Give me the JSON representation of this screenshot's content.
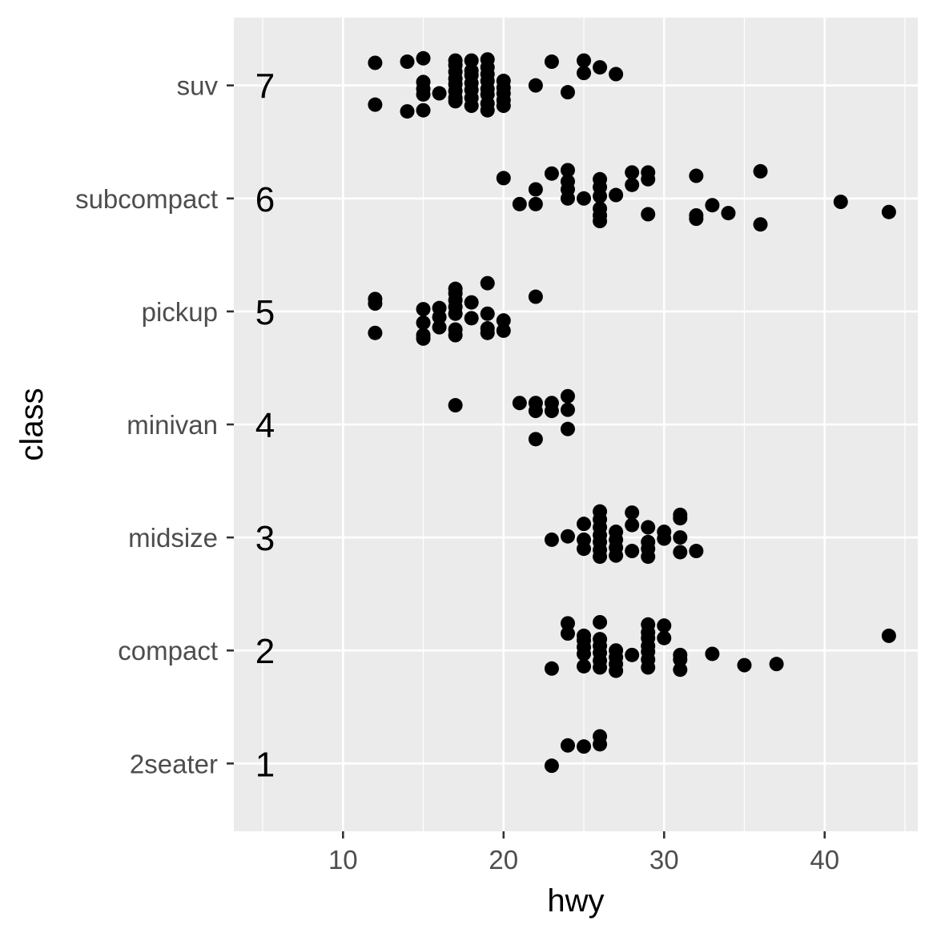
{
  "chart_data": {
    "type": "scatter",
    "xlabel": "hwy",
    "ylabel": "class",
    "xlim": [
      3.2,
      45.8
    ],
    "x_ticks": [
      10,
      20,
      30,
      40
    ],
    "categories": [
      "2seater",
      "compact",
      "midsize",
      "minivan",
      "pickup",
      "subcompact",
      "suv"
    ],
    "category_labels": [
      "1",
      "2",
      "3",
      "4",
      "5",
      "6",
      "7"
    ],
    "grid": true,
    "colors": {
      "panel": "#ebebeb",
      "grid": "#ffffff",
      "point": "#000000"
    },
    "points": [
      {
        "x": 23,
        "y": 0.98
      },
      {
        "x": 24,
        "y": 1.16
      },
      {
        "x": 25,
        "y": 1.15
      },
      {
        "x": 26,
        "y": 1.24
      },
      {
        "x": 26,
        "y": 1.17
      },
      {
        "x": 23,
        "y": 1.84
      },
      {
        "x": 24,
        "y": 2.24
      },
      {
        "x": 24,
        "y": 2.15
      },
      {
        "x": 25,
        "y": 2.09
      },
      {
        "x": 25,
        "y": 2.03
      },
      {
        "x": 25,
        "y": 1.97
      },
      {
        "x": 25,
        "y": 1.86
      },
      {
        "x": 25,
        "y": 2.13
      },
      {
        "x": 26,
        "y": 2.25
      },
      {
        "x": 26,
        "y": 2.1
      },
      {
        "x": 26,
        "y": 2.04
      },
      {
        "x": 26,
        "y": 1.98
      },
      {
        "x": 26,
        "y": 1.91
      },
      {
        "x": 26,
        "y": 1.85
      },
      {
        "x": 27,
        "y": 2.0
      },
      {
        "x": 27,
        "y": 1.94
      },
      {
        "x": 27,
        "y": 1.88
      },
      {
        "x": 27,
        "y": 1.82
      },
      {
        "x": 28,
        "y": 1.96
      },
      {
        "x": 29,
        "y": 2.23
      },
      {
        "x": 29,
        "y": 2.16
      },
      {
        "x": 29,
        "y": 2.11
      },
      {
        "x": 29,
        "y": 2.04
      },
      {
        "x": 29,
        "y": 1.99
      },
      {
        "x": 29,
        "y": 1.92
      },
      {
        "x": 29,
        "y": 1.85
      },
      {
        "x": 30,
        "y": 2.22
      },
      {
        "x": 30,
        "y": 2.11
      },
      {
        "x": 31,
        "y": 1.96
      },
      {
        "x": 31,
        "y": 1.92
      },
      {
        "x": 31,
        "y": 1.83
      },
      {
        "x": 33,
        "y": 1.97
      },
      {
        "x": 35,
        "y": 1.87
      },
      {
        "x": 37,
        "y": 1.88
      },
      {
        "x": 44,
        "y": 2.13
      },
      {
        "x": 23,
        "y": 2.98
      },
      {
        "x": 24,
        "y": 3.01
      },
      {
        "x": 25,
        "y": 3.12
      },
      {
        "x": 25,
        "y": 2.98
      },
      {
        "x": 25,
        "y": 2.9
      },
      {
        "x": 26,
        "y": 3.23
      },
      {
        "x": 26,
        "y": 3.16
      },
      {
        "x": 26,
        "y": 3.09
      },
      {
        "x": 26,
        "y": 3.02
      },
      {
        "x": 26,
        "y": 2.96
      },
      {
        "x": 26,
        "y": 2.89
      },
      {
        "x": 26,
        "y": 2.83
      },
      {
        "x": 27,
        "y": 3.05
      },
      {
        "x": 27,
        "y": 2.98
      },
      {
        "x": 27,
        "y": 2.91
      },
      {
        "x": 27,
        "y": 2.84
      },
      {
        "x": 28,
        "y": 3.22
      },
      {
        "x": 28,
        "y": 3.11
      },
      {
        "x": 28,
        "y": 2.88
      },
      {
        "x": 29,
        "y": 3.09
      },
      {
        "x": 29,
        "y": 2.96
      },
      {
        "x": 29,
        "y": 2.9
      },
      {
        "x": 29,
        "y": 2.83
      },
      {
        "x": 30,
        "y": 3.05
      },
      {
        "x": 30,
        "y": 2.99
      },
      {
        "x": 31,
        "y": 3.2
      },
      {
        "x": 31,
        "y": 3.17
      },
      {
        "x": 31,
        "y": 3.0
      },
      {
        "x": 31,
        "y": 2.87
      },
      {
        "x": 32,
        "y": 2.88
      },
      {
        "x": 17,
        "y": 4.17
      },
      {
        "x": 21,
        "y": 4.19
      },
      {
        "x": 22,
        "y": 4.19
      },
      {
        "x": 22,
        "y": 4.12
      },
      {
        "x": 22,
        "y": 3.87
      },
      {
        "x": 23,
        "y": 4.19
      },
      {
        "x": 23,
        "y": 4.12
      },
      {
        "x": 24,
        "y": 4.25
      },
      {
        "x": 24,
        "y": 4.13
      },
      {
        "x": 24,
        "y": 3.96
      },
      {
        "x": 12,
        "y": 5.11
      },
      {
        "x": 12,
        "y": 5.07
      },
      {
        "x": 12,
        "y": 4.81
      },
      {
        "x": 15,
        "y": 5.02
      },
      {
        "x": 15,
        "y": 4.9
      },
      {
        "x": 15,
        "y": 4.79
      },
      {
        "x": 15,
        "y": 4.76
      },
      {
        "x": 16,
        "y": 5.03
      },
      {
        "x": 16,
        "y": 4.95
      },
      {
        "x": 16,
        "y": 4.86
      },
      {
        "x": 17,
        "y": 5.2
      },
      {
        "x": 17,
        "y": 5.16
      },
      {
        "x": 17,
        "y": 5.1
      },
      {
        "x": 17,
        "y": 5.04
      },
      {
        "x": 17,
        "y": 4.98
      },
      {
        "x": 17,
        "y": 4.84
      },
      {
        "x": 17,
        "y": 4.79
      },
      {
        "x": 18,
        "y": 5.08
      },
      {
        "x": 18,
        "y": 4.94
      },
      {
        "x": 19,
        "y": 5.25
      },
      {
        "x": 19,
        "y": 4.98
      },
      {
        "x": 19,
        "y": 4.85
      },
      {
        "x": 19,
        "y": 4.81
      },
      {
        "x": 20,
        "y": 4.92
      },
      {
        "x": 20,
        "y": 4.83
      },
      {
        "x": 22,
        "y": 5.13
      },
      {
        "x": 20,
        "y": 6.18
      },
      {
        "x": 21,
        "y": 5.95
      },
      {
        "x": 22,
        "y": 6.08
      },
      {
        "x": 22,
        "y": 5.95
      },
      {
        "x": 23,
        "y": 6.22
      },
      {
        "x": 24,
        "y": 6.25
      },
      {
        "x": 24,
        "y": 6.15
      },
      {
        "x": 24,
        "y": 6.08
      },
      {
        "x": 24,
        "y": 6.0
      },
      {
        "x": 25,
        "y": 6.0
      },
      {
        "x": 26,
        "y": 6.17
      },
      {
        "x": 26,
        "y": 6.1
      },
      {
        "x": 26,
        "y": 6.02
      },
      {
        "x": 26,
        "y": 5.91
      },
      {
        "x": 26,
        "y": 5.85
      },
      {
        "x": 26,
        "y": 5.8
      },
      {
        "x": 27,
        "y": 6.03
      },
      {
        "x": 28,
        "y": 6.23
      },
      {
        "x": 28,
        "y": 6.12
      },
      {
        "x": 29,
        "y": 6.23
      },
      {
        "x": 29,
        "y": 6.17
      },
      {
        "x": 29,
        "y": 5.86
      },
      {
        "x": 32,
        "y": 6.2
      },
      {
        "x": 32,
        "y": 5.85
      },
      {
        "x": 32,
        "y": 5.82
      },
      {
        "x": 33,
        "y": 5.94
      },
      {
        "x": 34,
        "y": 5.87
      },
      {
        "x": 36,
        "y": 6.24
      },
      {
        "x": 36,
        "y": 5.77
      },
      {
        "x": 41,
        "y": 5.97
      },
      {
        "x": 44,
        "y": 5.88
      },
      {
        "x": 12,
        "y": 7.2
      },
      {
        "x": 12,
        "y": 6.83
      },
      {
        "x": 14,
        "y": 7.21
      },
      {
        "x": 14,
        "y": 6.77
      },
      {
        "x": 15,
        "y": 7.24
      },
      {
        "x": 15,
        "y": 7.03
      },
      {
        "x": 15,
        "y": 6.97
      },
      {
        "x": 15,
        "y": 6.92
      },
      {
        "x": 15,
        "y": 6.78
      },
      {
        "x": 16,
        "y": 6.93
      },
      {
        "x": 17,
        "y": 7.22
      },
      {
        "x": 17,
        "y": 7.18
      },
      {
        "x": 17,
        "y": 7.12
      },
      {
        "x": 17,
        "y": 7.06
      },
      {
        "x": 17,
        "y": 7.01
      },
      {
        "x": 17,
        "y": 6.95
      },
      {
        "x": 17,
        "y": 6.89
      },
      {
        "x": 17,
        "y": 6.86
      },
      {
        "x": 18,
        "y": 7.22
      },
      {
        "x": 18,
        "y": 7.13
      },
      {
        "x": 18,
        "y": 7.09
      },
      {
        "x": 18,
        "y": 7.02
      },
      {
        "x": 18,
        "y": 6.96
      },
      {
        "x": 18,
        "y": 6.89
      },
      {
        "x": 18,
        "y": 6.82
      },
      {
        "x": 19,
        "y": 7.23
      },
      {
        "x": 19,
        "y": 7.16
      },
      {
        "x": 19,
        "y": 7.1
      },
      {
        "x": 19,
        "y": 7.04
      },
      {
        "x": 19,
        "y": 6.97
      },
      {
        "x": 19,
        "y": 6.92
      },
      {
        "x": 19,
        "y": 6.84
      },
      {
        "x": 19,
        "y": 6.78
      },
      {
        "x": 20,
        "y": 7.04
      },
      {
        "x": 20,
        "y": 6.98
      },
      {
        "x": 20,
        "y": 6.93
      },
      {
        "x": 20,
        "y": 6.87
      },
      {
        "x": 20,
        "y": 6.82
      },
      {
        "x": 22,
        "y": 7.0
      },
      {
        "x": 23,
        "y": 7.21
      },
      {
        "x": 24,
        "y": 6.94
      },
      {
        "x": 25,
        "y": 7.22
      },
      {
        "x": 25,
        "y": 7.11
      },
      {
        "x": 26,
        "y": 7.16
      },
      {
        "x": 27,
        "y": 7.1
      }
    ]
  }
}
